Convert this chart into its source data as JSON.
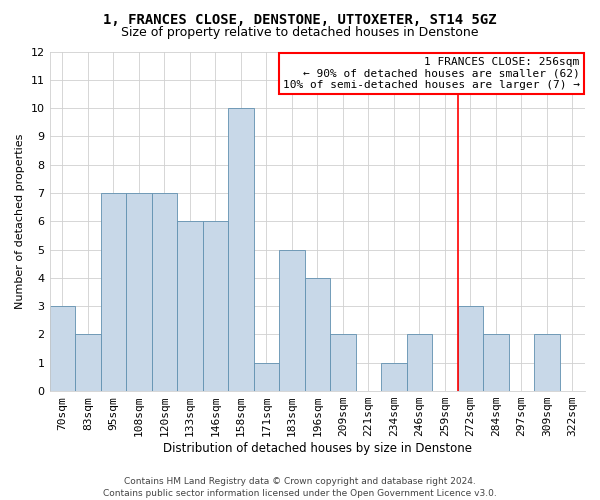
{
  "title": "1, FRANCES CLOSE, DENSTONE, UTTOXETER, ST14 5GZ",
  "subtitle": "Size of property relative to detached houses in Denstone",
  "xlabel": "Distribution of detached houses by size in Denstone",
  "ylabel": "Number of detached properties",
  "categories": [
    "70sqm",
    "83sqm",
    "95sqm",
    "108sqm",
    "120sqm",
    "133sqm",
    "146sqm",
    "158sqm",
    "171sqm",
    "183sqm",
    "196sqm",
    "209sqm",
    "221sqm",
    "234sqm",
    "246sqm",
    "259sqm",
    "272sqm",
    "284sqm",
    "297sqm",
    "309sqm",
    "322sqm"
  ],
  "values": [
    3,
    2,
    7,
    7,
    7,
    6,
    6,
    10,
    1,
    5,
    4,
    2,
    0,
    1,
    2,
    0,
    3,
    2,
    0,
    2,
    0
  ],
  "bar_color": "#c8d8e8",
  "bar_edge_color": "#6090b0",
  "ylim": [
    0,
    12
  ],
  "yticks": [
    0,
    1,
    2,
    3,
    4,
    5,
    6,
    7,
    8,
    9,
    10,
    11,
    12
  ],
  "redline_index": 15,
  "annotation_line1": "1 FRANCES CLOSE: 256sqm",
  "annotation_line2": "← 90% of detached houses are smaller (62)",
  "annotation_line3": "10% of semi-detached houses are larger (7) →",
  "footer_line1": "Contains HM Land Registry data © Crown copyright and database right 2024.",
  "footer_line2": "Contains public sector information licensed under the Open Government Licence v3.0.",
  "background_color": "#ffffff",
  "grid_color": "#d0d0d0",
  "title_fontsize": 10,
  "subtitle_fontsize": 9,
  "ylabel_fontsize": 8,
  "xlabel_fontsize": 8.5,
  "tick_fontsize": 8,
  "annotation_fontsize": 8,
  "footer_fontsize": 6.5
}
